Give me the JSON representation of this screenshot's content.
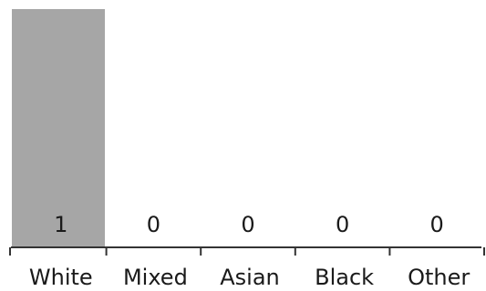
{
  "chart_data": {
    "type": "bar",
    "categories": [
      "White",
      "Mixed",
      "Asian",
      "Black",
      "Other"
    ],
    "values": [
      1,
      0,
      0,
      0,
      0
    ],
    "data_labels": [
      "1",
      "0",
      "0",
      "0",
      "0"
    ],
    "title": "",
    "xlabel": "",
    "ylabel": "",
    "ylim": [
      0,
      1
    ],
    "grid": false,
    "legend": "none",
    "bar_color": "#a6a6a6",
    "axis_color": "#333333",
    "text_color": "#1a1a1a"
  }
}
